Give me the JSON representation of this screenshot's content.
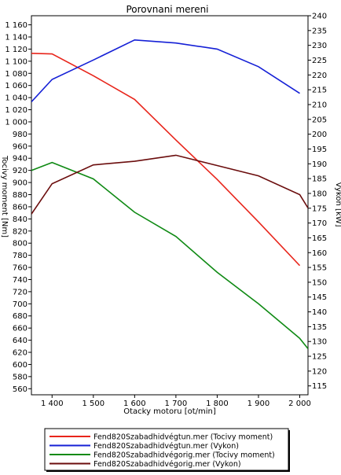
{
  "chart_data": {
    "type": "line",
    "title": "Porovnani mereni",
    "xlabel": "Otacky motoru [ot/min]",
    "ylabel_left": "Tocivy moment [Nm]",
    "ylabel_right": "Vykon [kW]",
    "xlim": [
      1350,
      2020
    ],
    "ylim_left": [
      550,
      1175
    ],
    "ylim_right": [
      112,
      240
    ],
    "x_ticks": [
      1400,
      1500,
      1600,
      1700,
      1800,
      1900,
      2000
    ],
    "x_tick_labels": [
      "1 400",
      "1 500",
      "1 600",
      "1 700",
      "1 800",
      "1 900",
      "2 000"
    ],
    "y_left_ticks": [
      560,
      580,
      600,
      620,
      640,
      660,
      680,
      700,
      720,
      740,
      760,
      780,
      800,
      820,
      840,
      860,
      880,
      900,
      920,
      940,
      960,
      980,
      1000,
      1020,
      1040,
      1060,
      1080,
      1100,
      1120,
      1140,
      1160
    ],
    "y_left_tick_labels": [
      "560",
      "580",
      "600",
      "620",
      "640",
      "660",
      "680",
      "700",
      "720",
      "740",
      "760",
      "780",
      "800",
      "820",
      "840",
      "860",
      "880",
      "900",
      "920",
      "940",
      "960",
      "980",
      "1 000",
      "1 020",
      "1 040",
      "1 060",
      "1 080",
      "1 100",
      "1 120",
      "1 140",
      "1 160"
    ],
    "y_right_ticks": [
      115,
      120,
      125,
      130,
      135,
      140,
      145,
      150,
      155,
      160,
      165,
      170,
      175,
      180,
      185,
      190,
      195,
      200,
      205,
      210,
      215,
      220,
      225,
      230,
      235,
      240
    ],
    "grid": false,
    "legend_position": "bottom",
    "series": [
      {
        "name": "Fend820Szabadhidvégtun.mer  (Tocivy moment)",
        "axis": "left",
        "color": "#e8251b",
        "x": [
          1350,
          1400,
          1500,
          1600,
          1700,
          1800,
          1900,
          2000
        ],
        "values": [
          1113,
          1112,
          1076,
          1037,
          970,
          905,
          835,
          763
        ]
      },
      {
        "name": "Fend820Szabadhidvégtun.mer  (Vykon)",
        "axis": "left",
        "color": "#1520d6",
        "x": [
          1350,
          1400,
          1500,
          1600,
          1700,
          1800,
          1900,
          2000
        ],
        "values": [
          1033,
          1070,
          1102,
          1135,
          1130,
          1120,
          1091,
          1047
        ]
      },
      {
        "name": "Fend820Szabadhidvégorig.mer  (Tocivy moment)",
        "axis": "left",
        "color": "#0f8a14",
        "x": [
          1350,
          1400,
          1500,
          1600,
          1700,
          1800,
          1900,
          2000,
          2020
        ],
        "values": [
          920,
          933,
          906,
          851,
          811,
          752,
          700,
          643,
          626
        ]
      },
      {
        "name": "Fend820Szabadhidvégorig.mer  (Vykon)",
        "axis": "left",
        "color": "#6b0d0d",
        "x": [
          1350,
          1400,
          1500,
          1600,
          1700,
          1800,
          1900,
          2000,
          2020
        ],
        "values": [
          848,
          898,
          929,
          935,
          945,
          928,
          911,
          880,
          858
        ]
      }
    ]
  }
}
